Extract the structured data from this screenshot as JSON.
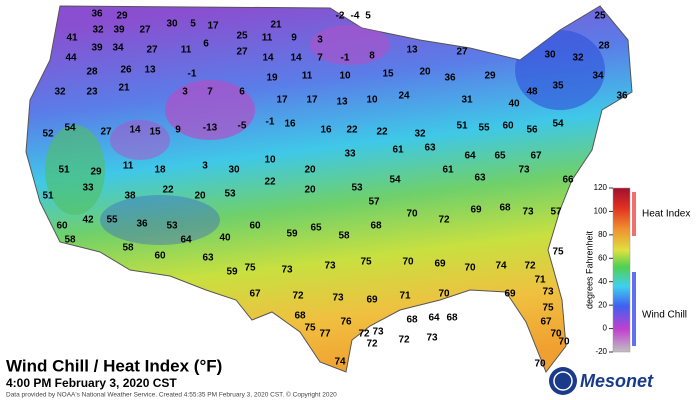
{
  "title": "Wind Chill / Heat Index (°F)",
  "subtitle": "4:00 PM February 3, 2020 CST",
  "credit": "Data provided by NOAA's National Weather Service. Created 4:55:35 PM February 3, 2020 CST. © Copyright 2020",
  "logo": "Mesonet",
  "legend": {
    "axis_label": "degrees Fahrenheit",
    "range": [
      -20,
      120
    ],
    "ticks": [
      120,
      100,
      80,
      60,
      40,
      20,
      0,
      -20
    ],
    "heat_label": "Heat Index",
    "chill_label": "Wind Chill"
  },
  "stations": [
    36,
    29,
    30,
    5,
    17,
    21,
    41,
    32,
    39,
    27,
    6,
    25,
    11,
    9,
    3,
    -2,
    -4,
    5,
    44,
    39,
    34,
    27,
    11,
    27,
    14,
    14,
    7,
    -1,
    8,
    13,
    27,
    28,
    26,
    13,
    -1,
    19,
    11,
    10,
    15,
    20,
    36,
    29,
    32,
    23,
    21,
    3,
    7,
    6,
    17,
    17,
    13,
    10,
    24,
    31,
    30,
    32,
    28,
    25,
    34,
    36,
    35,
    48,
    40,
    52,
    54,
    27,
    14,
    15,
    9,
    -13,
    -5,
    -1,
    16,
    16,
    22,
    22,
    32,
    51,
    55,
    60,
    56,
    54,
    51,
    29,
    11,
    18,
    3,
    30,
    10,
    20,
    33,
    61,
    63,
    64,
    65,
    67,
    51,
    33,
    38,
    22,
    20,
    53,
    22,
    20,
    53,
    57,
    54,
    61,
    63,
    73,
    66,
    60,
    42,
    55,
    36,
    53,
    40,
    60,
    59,
    65,
    58,
    68,
    70,
    72,
    69,
    68,
    73,
    57,
    58,
    58,
    64,
    63,
    59,
    75,
    73,
    73,
    75,
    70,
    69,
    70,
    74,
    72,
    75,
    71,
    60,
    67,
    72,
    73,
    69,
    71,
    70,
    69,
    73,
    68,
    75,
    77,
    76,
    72,
    73,
    68,
    64,
    68,
    72,
    72,
    73,
    67,
    70,
    74,
    70,
    70,
    75
  ]
}
